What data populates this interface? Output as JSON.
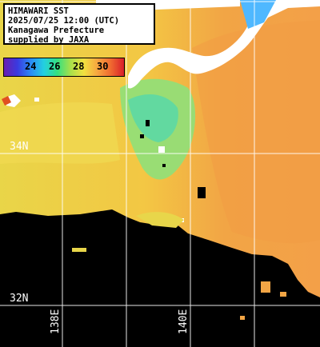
{
  "title_lines": [
    "HIMAWARI SST",
    "2025/07/25 12:00 (UTC)",
    "Kanagawa Prefecture",
    "supplied by JAXA"
  ],
  "legend_ticks": [
    "24",
    "26",
    "28",
    "30"
  ],
  "lat_labels": [
    "34N",
    "32N"
  ],
  "lon_labels": [
    "138E",
    "140E"
  ],
  "colors": {
    "land": "#ffffff",
    "no_data": "#000000",
    "grid": "#ffffff",
    "sst_cool": "#7fe58a",
    "sst_mid": "#f5c040",
    "sst_warm": "#f2a040"
  }
}
